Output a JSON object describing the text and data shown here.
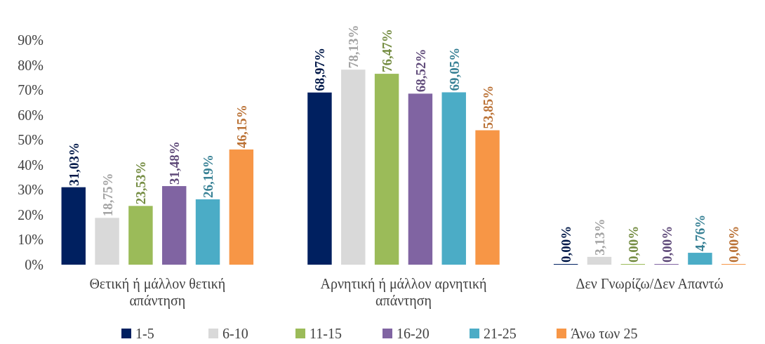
{
  "chart_data": {
    "type": "bar",
    "categories": [
      "Θετική ή μάλλον θετική απάντηση",
      "Αρνητική ή μάλλον αρνητική απάντηση",
      "Δεν Γνωρίζω/Δεν Απαντώ"
    ],
    "series": [
      {
        "name": "1-5",
        "color": "#002060",
        "values": [
          31.03,
          68.97,
          0
        ],
        "value_labels": [
          "31,03%",
          "68,97%",
          "0,00%"
        ]
      },
      {
        "name": "6-10",
        "color": "#d9d9d9",
        "values": [
          18.75,
          78.13,
          3.13
        ],
        "value_labels": [
          "18,75%",
          "78,13%",
          "3,13%"
        ]
      },
      {
        "name": "11-15",
        "color": "#9bbb59",
        "values": [
          23.53,
          76.47,
          0
        ],
        "value_labels": [
          "23,53%",
          "76,47%",
          "0,00%"
        ]
      },
      {
        "name": "16-20",
        "color": "#8064a2",
        "values": [
          31.48,
          68.52,
          0
        ],
        "value_labels": [
          "31,48%",
          "68,52%",
          "0,00%"
        ]
      },
      {
        "name": "21-25",
        "color": "#4bacc6",
        "values": [
          26.19,
          69.05,
          4.76
        ],
        "value_labels": [
          "26,19%",
          "69,05%",
          "4,76%"
        ]
      },
      {
        "name": "Άνω των 25",
        "color": "#f79646",
        "values": [
          46.15,
          53.85,
          0
        ],
        "value_labels": [
          "46,15%",
          "53,85%",
          "0,00%"
        ]
      }
    ],
    "ylim": [
      0,
      90
    ],
    "yticks": [
      {
        "value": 0,
        "label": "0%"
      },
      {
        "value": 10,
        "label": "10%"
      },
      {
        "value": 20,
        "label": "20%"
      },
      {
        "value": 30,
        "label": "30%"
      },
      {
        "value": 40,
        "label": "40%"
      },
      {
        "value": 50,
        "label": "50%"
      },
      {
        "value": 60,
        "label": "60%"
      },
      {
        "value": 70,
        "label": "70%"
      },
      {
        "value": 80,
        "label": "80%"
      },
      {
        "value": 90,
        "label": "90%"
      }
    ],
    "grid": false,
    "legend": "bottom"
  }
}
